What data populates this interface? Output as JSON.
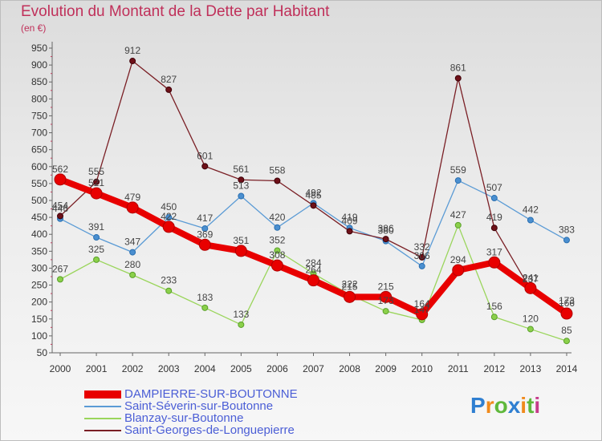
{
  "title": "Evolution du Montant de la Dette par Habitant",
  "unit": "(en €)",
  "logo": "Proxiti",
  "chart_data": {
    "type": "line",
    "title": "Evolution du Montant de la Dette par Habitant",
    "ylabel": "(en €)",
    "x": [
      "2000",
      "2001",
      "2002",
      "2003",
      "2004",
      "2005",
      "2006",
      "2007",
      "2008",
      "2009",
      "2010",
      "2011",
      "2012",
      "2013",
      "2014"
    ],
    "ylim": [
      50,
      950
    ],
    "yticks": [
      50,
      100,
      150,
      200,
      250,
      300,
      350,
      400,
      450,
      500,
      550,
      600,
      650,
      700,
      750,
      800,
      850,
      900,
      950
    ],
    "grid": false,
    "legend_position": "bottom",
    "series": [
      {
        "name": "DAMPIERRE-SUR-BOUTONNE",
        "color": "#e80000",
        "values": [
          562,
          521,
          479,
          422,
          369,
          351,
          308,
          264,
          215,
          215,
          164,
          294,
          317,
          241,
          166
        ]
      },
      {
        "name": "Saint-Séverin-sur-Boutonne",
        "color": "#5b9bd5",
        "values": [
          446,
          391,
          347,
          450,
          417,
          513,
          420,
          492,
          419,
          380,
          306,
          559,
          507,
          442,
          383
        ]
      },
      {
        "name": "Blanzay-sur-Boutonne",
        "color": "#9ad55b",
        "values": [
          267,
          325,
          280,
          233,
          183,
          133,
          352,
          284,
          222,
          173,
          147,
          427,
          156,
          120,
          85
        ]
      },
      {
        "name": "Saint-Georges-de-Longuepierre",
        "color": "#7a1f25",
        "values": [
          454,
          555,
          912,
          827,
          601,
          561,
          558,
          485,
          409,
          386,
          332,
          861,
          419,
          237,
          173
        ]
      }
    ]
  }
}
